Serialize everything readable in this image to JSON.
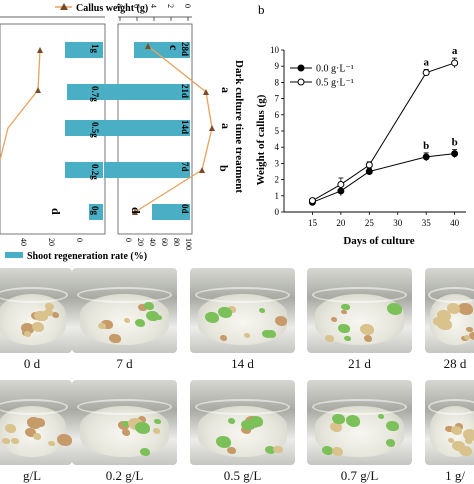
{
  "panel_a": {
    "legend_top": "Callus weight (g)",
    "legend_bottom": "Shoot regeneration rate (%)",
    "center_label": "Dark culture time treatment",
    "left_chart_labels": [
      "1g",
      "0.7g",
      "0.5g",
      "0.2g",
      "0g"
    ],
    "right_chart_labels": [
      "28d",
      "21d",
      "14d",
      "7d",
      "0d"
    ],
    "left_letters": [
      "d"
    ],
    "right_letters": [
      "c",
      "a",
      "a",
      "b",
      "d"
    ],
    "top_axis_ticks": [
      "0",
      "2",
      "4",
      "6",
      "8"
    ],
    "bottom_axis_ticks_left": [
      "0",
      "20",
      "40"
    ],
    "bottom_axis_ticks_right": [
      "0",
      "20",
      "40",
      "60",
      "80",
      "100"
    ],
    "colors": {
      "bar": "#4aaec4",
      "line": "#e8a25a"
    }
  },
  "panel_b": {
    "panel_label": "b",
    "chart_data": {
      "type": "line",
      "x": [
        15,
        20,
        25,
        35,
        40
      ],
      "xlabel": "Days of culture",
      "ylabel": "Weight of callus (g)",
      "xlim": [
        10,
        42
      ],
      "ylim": [
        0,
        10
      ],
      "xticks": [
        "15",
        "20",
        "25",
        "30",
        "35",
        "40"
      ],
      "yticks": [
        "0",
        "1",
        "2",
        "3",
        "4",
        "5",
        "6",
        "7",
        "8",
        "9",
        "10"
      ],
      "series": [
        {
          "name": "0.0 g·L⁻¹",
          "values": [
            0.6,
            1.3,
            2.5,
            3.4,
            3.6
          ],
          "errors": [
            0.15,
            0.3,
            0.2,
            0.25,
            0.25
          ],
          "marker": "filled",
          "letters": [
            "",
            "",
            "",
            "b",
            "b"
          ]
        },
        {
          "name": "0.5 g·L⁻¹",
          "values": [
            0.7,
            1.7,
            2.9,
            8.6,
            9.2
          ],
          "errors": [
            0.15,
            0.4,
            0.2,
            0.2,
            0.3
          ],
          "marker": "open",
          "letters": [
            "",
            "",
            "",
            "a",
            "a"
          ]
        }
      ]
    }
  },
  "photo_row_1": {
    "captions": [
      "0 d",
      "7 d",
      "14 d",
      "21 d",
      "28 d"
    ]
  },
  "photo_row_2": {
    "captions": [
      "g/L",
      "0.2 g/L",
      "0.5 g/L",
      "0.7 g/L",
      "1 g/"
    ]
  }
}
